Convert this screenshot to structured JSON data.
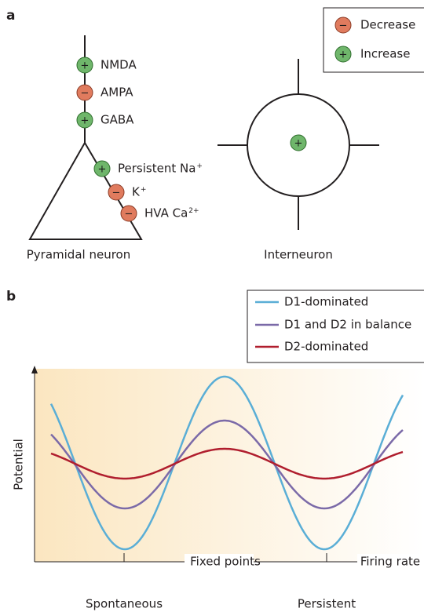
{
  "panel_a": {
    "label": "a",
    "legend": [
      {
        "sign": "−",
        "text": "Decrease"
      },
      {
        "sign": "+",
        "text": "Increase"
      }
    ],
    "pyramidal_receptors": [
      {
        "sign": "+",
        "text": "NMDA",
        "sup": null
      },
      {
        "sign": "−",
        "text": "AMPA",
        "sup": null
      },
      {
        "sign": "+",
        "text": "GABA",
        "sup": null
      },
      {
        "sign": "+",
        "text": "Persistent Na",
        "sup": "+"
      },
      {
        "sign": "−",
        "text": "K",
        "sup": "+"
      },
      {
        "sign": "−",
        "text": "HVA Ca",
        "sup": "2+"
      }
    ],
    "pyramidal_label": "Pyramidal neuron",
    "interneuron_sign": "+",
    "interneuron_label": "Interneuron"
  },
  "panel_b": {
    "label": "b",
    "legend": [
      "D1-dominated",
      "D1 and D2 in balance",
      "D2-dominated"
    ],
    "y_axis_label": "Potential",
    "x_axis_label": "Firing rate",
    "bracket_label": "Fixed points",
    "left_point_label": "Spontaneous",
    "right_point_label": "Persistent"
  }
}
